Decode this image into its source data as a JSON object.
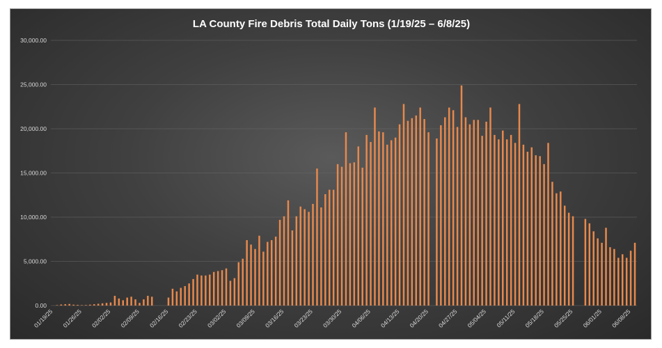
{
  "chart_data": {
    "type": "bar",
    "title": "LA County Fire Debris Total Daily Tons (1/19/25 – 6/8/25)",
    "xlabel": "",
    "ylabel": "",
    "ylim": [
      0,
      30000
    ],
    "y_ticks": [
      0,
      5000,
      10000,
      15000,
      20000,
      25000,
      30000
    ],
    "y_tick_labels": [
      "0.00",
      "5,000.00",
      "10,000.00",
      "15,000.00",
      "20,000.00",
      "25,000.00",
      "30,000.00"
    ],
    "x_tick_labels": [
      "01/19/25",
      "01/26/25",
      "02/02/25",
      "02/09/25",
      "02/16/25",
      "02/23/25",
      "03/02/25",
      "03/09/25",
      "03/16/25",
      "03/23/25",
      "03/30/25",
      "04/06/25",
      "04/13/25",
      "04/20/25",
      "04/27/25",
      "05/04/25",
      "05/11/25",
      "05/18/25",
      "05/25/25",
      "06/01/25",
      "06/08/25"
    ],
    "start_date": "01/19/25",
    "end_date": "06/08/25",
    "series": [
      {
        "name": "Total Daily Tons",
        "color": "#e8894c",
        "values": [
          0,
          50,
          120,
          150,
          180,
          100,
          80,
          50,
          60,
          100,
          150,
          200,
          250,
          300,
          350,
          1100,
          800,
          600,
          900,
          1000,
          700,
          300,
          700,
          1100,
          1000,
          0,
          0,
          0,
          900,
          1900,
          1600,
          2000,
          2200,
          2500,
          3000,
          3500,
          3400,
          3400,
          3500,
          3800,
          3900,
          4000,
          4200,
          2800,
          3100,
          4900,
          5300,
          7400,
          6900,
          6400,
          7900,
          6100,
          7200,
          7400,
          7800,
          9700,
          10100,
          11900,
          8500,
          10100,
          11200,
          10900,
          10600,
          11500,
          15500,
          11100,
          12600,
          13100,
          13100,
          16000,
          15700,
          19600,
          16100,
          16200,
          18000,
          15600,
          19300,
          18500,
          22400,
          19700,
          19600,
          18200,
          18700,
          19000,
          20500,
          22800,
          20900,
          21200,
          21500,
          22400,
          21100,
          19600,
          0,
          18900,
          20400,
          21300,
          22400,
          22100,
          20200,
          24900,
          21300,
          20500,
          21000,
          21000,
          19200,
          20800,
          22400,
          19300,
          18800,
          19800,
          18800,
          19300,
          18400,
          22800,
          18200,
          17400,
          17900,
          17000,
          16900,
          16000,
          18400,
          14000,
          12700,
          12900,
          11300,
          10500,
          10100,
          0,
          0,
          9800,
          9300,
          8400,
          7600,
          7100,
          8800,
          6600,
          6400,
          5400,
          5800,
          5400,
          6200,
          7100
        ]
      }
    ]
  }
}
